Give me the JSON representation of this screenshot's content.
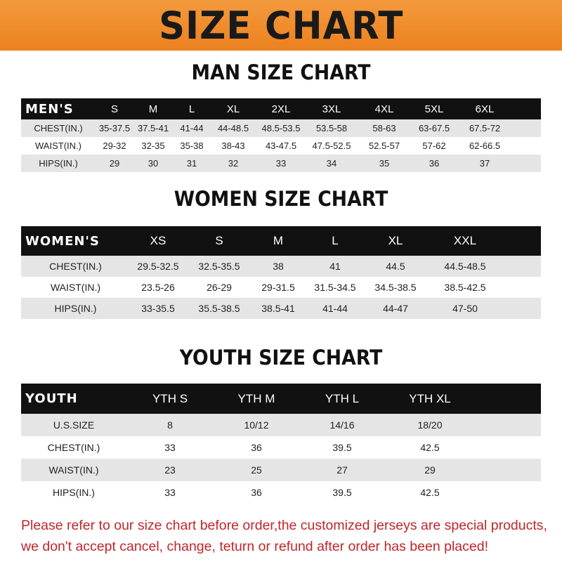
{
  "title": "SIZE CHART",
  "men": {
    "title": "MAN SIZE CHART",
    "header": [
      "MEN'S",
      "S",
      "M",
      "L",
      "XL",
      "2XL",
      "3XL",
      "4XL",
      "5XL",
      "6XL"
    ],
    "rows": [
      [
        "CHEST(IN.)",
        "35-37.5",
        "37.5-41",
        "41-44",
        "44-48.5",
        "48.5-53.5",
        "53.5-58",
        "58-63",
        "63-67.5",
        "67.5-72"
      ],
      [
        "WAIST(IN.)",
        "29-32",
        "32-35",
        "35-38",
        "38-43",
        "43-47.5",
        "47.5-52.5",
        "52.5-57",
        "57-62",
        "62-66.5"
      ],
      [
        "HIPS(IN.)",
        "29",
        "30",
        "31",
        "32",
        "33",
        "34",
        "35",
        "36",
        "37"
      ]
    ]
  },
  "women": {
    "title": "WOMEN SIZE CHART",
    "header": [
      "WOMEN'S",
      "XS",
      "S",
      "M",
      "L",
      "XL",
      "XXL"
    ],
    "rows": [
      [
        "CHEST(IN.)",
        "29.5-32.5",
        "32.5-35.5",
        "38",
        "41",
        "44.5",
        "44.5-48.5"
      ],
      [
        "WAIST(IN.)",
        "23.5-26",
        "26-29",
        "29-31.5",
        "31.5-34.5",
        "34.5-38.5",
        "38.5-42.5"
      ],
      [
        "HIPS(IN.)",
        "33-35.5",
        "35.5-38.5",
        "38.5-41",
        "41-44",
        "44-47",
        "47-50"
      ]
    ]
  },
  "youth": {
    "title": "YOUTH SIZE CHART",
    "header": [
      "YOUTH",
      "YTH S",
      "YTH M",
      "YTH L",
      "YTH XL"
    ],
    "rows": [
      [
        "U.S.SIZE",
        "8",
        "10/12",
        "14/16",
        "18/20"
      ],
      [
        "CHEST(IN.)",
        "33",
        "36",
        "39.5",
        "42.5"
      ],
      [
        "WAIST(IN.)",
        "23",
        "25",
        "27",
        "29"
      ],
      [
        "HIPS(IN.)",
        "33",
        "36",
        "39.5",
        "42.5"
      ]
    ]
  },
  "footer": {
    "line1": "Please refer to our size chart before order,the customized jerseys are special products,",
    "line2": "we don't accept cancel, change, teturn or refund after order has been placed!"
  },
  "colors": {
    "banner": "#ec8120",
    "header_row": "#111111",
    "stripe": "#e5e5e5",
    "notice": "#c0262a"
  }
}
